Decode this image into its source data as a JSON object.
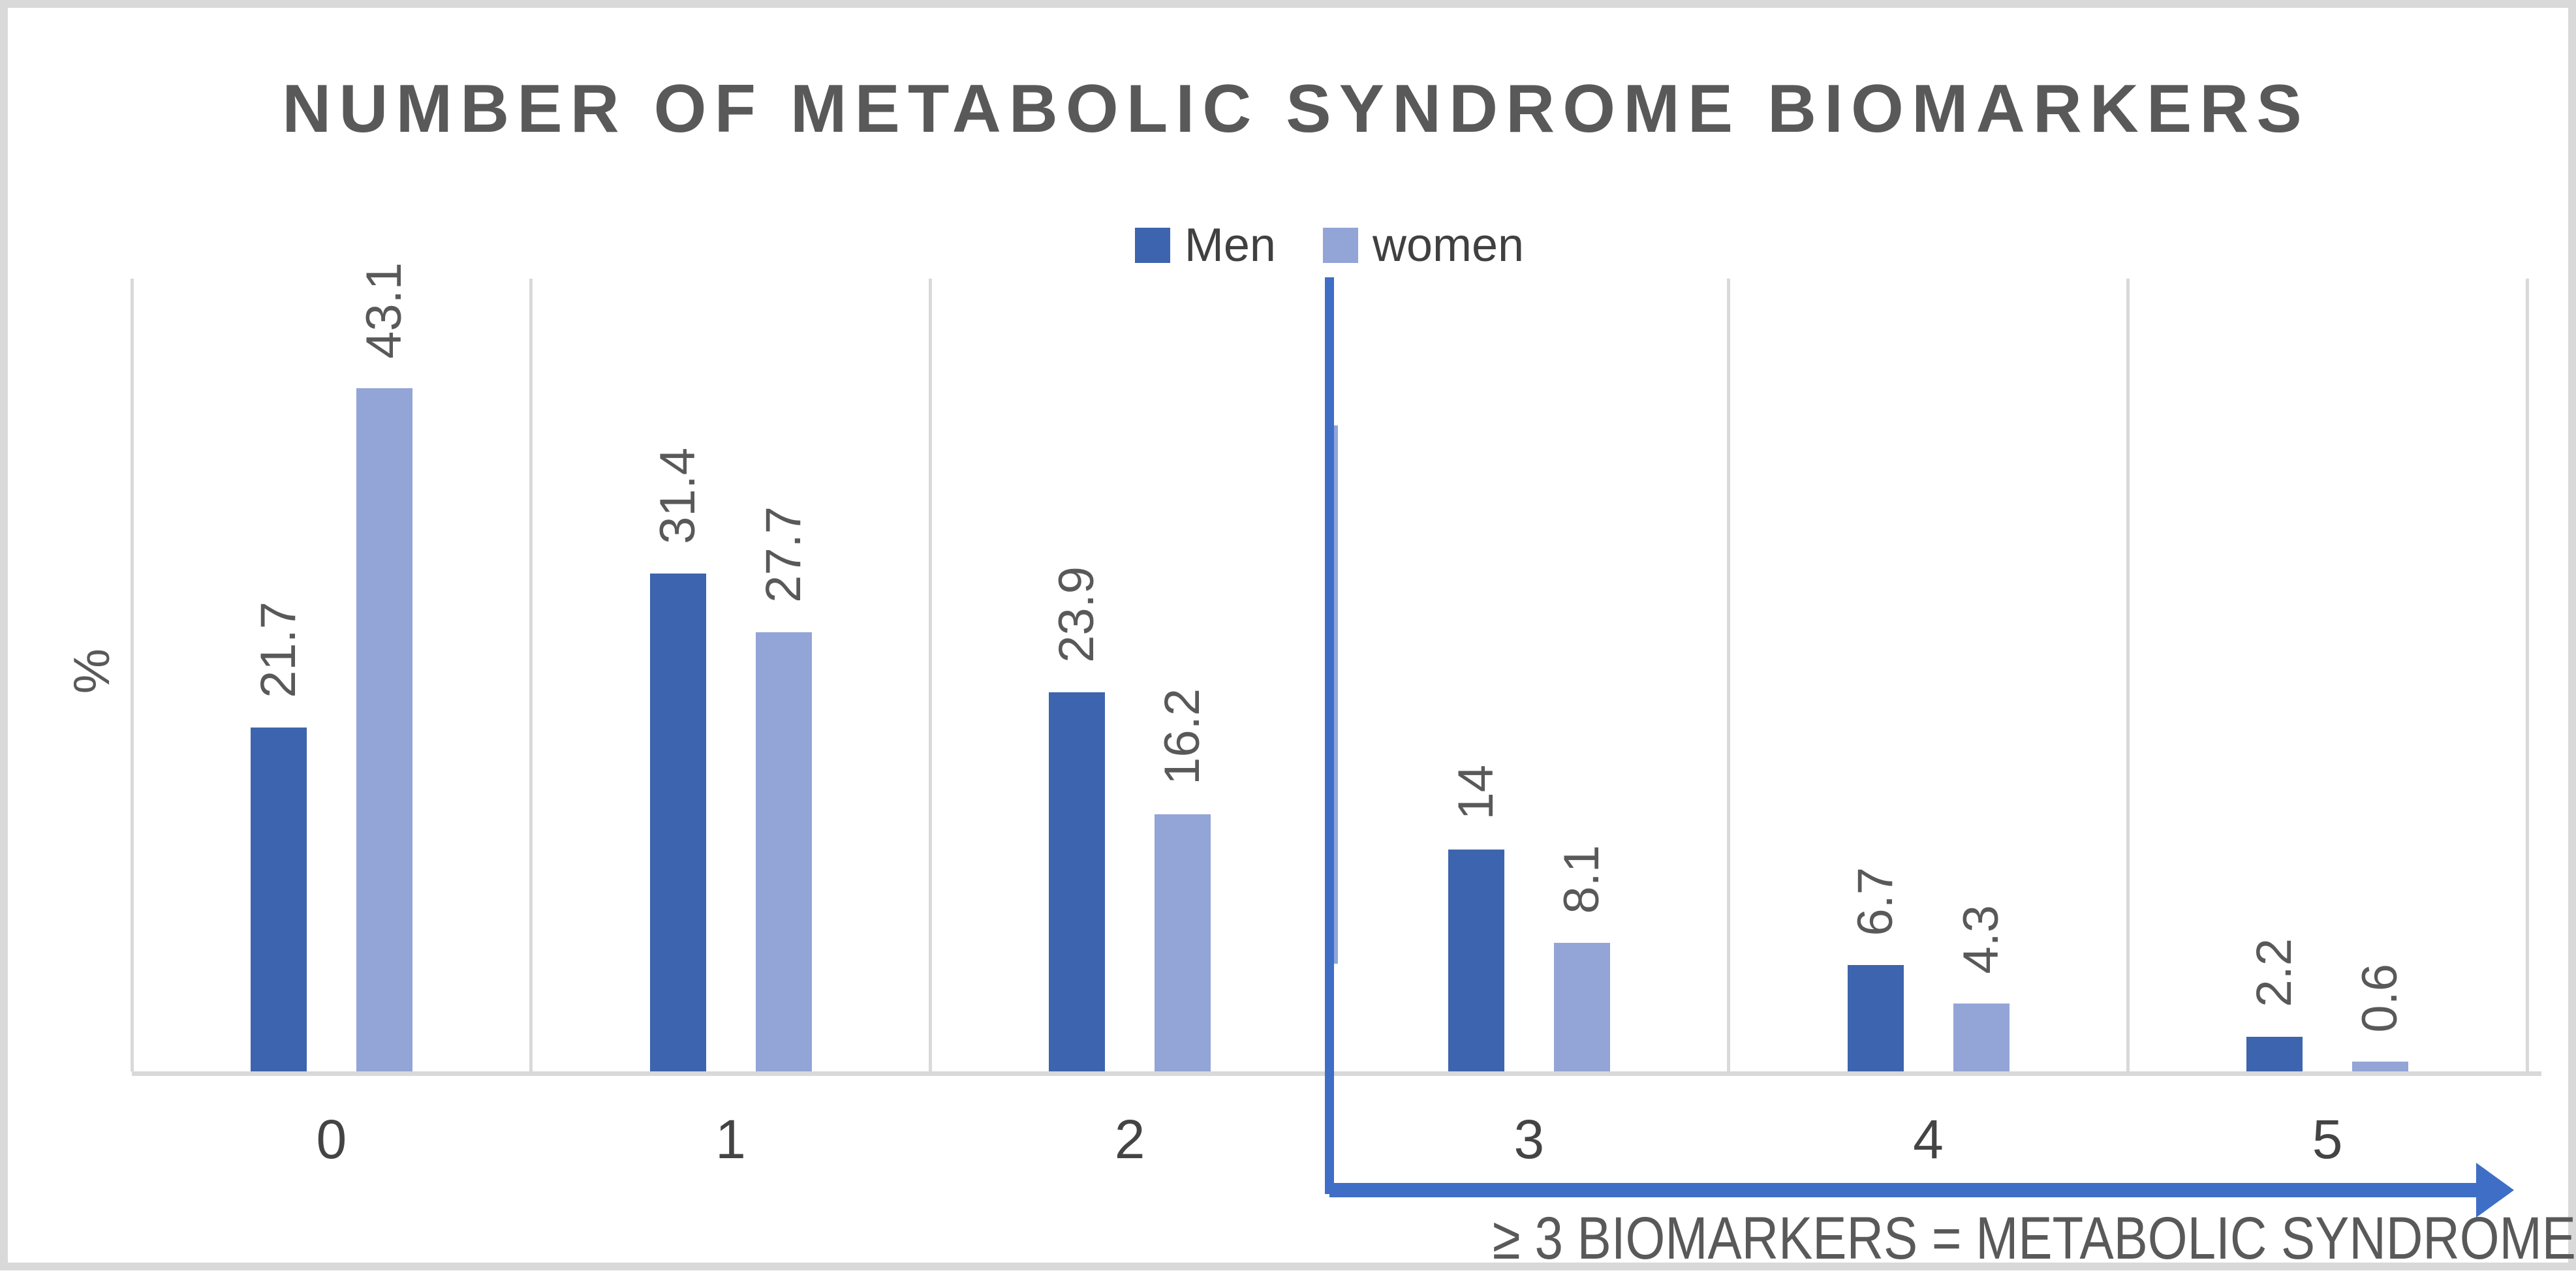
{
  "title": "NUMBER OF METABOLIC SYNDROME BIOMARKERS",
  "legend": {
    "items": [
      {
        "label": "Men",
        "color": "#3d64ae"
      },
      {
        "label": "women",
        "color": "#93a4d6"
      }
    ],
    "position": "top-center"
  },
  "y_axis_label": "%",
  "annotation": {
    "text": "≥ 3 BIOMARKERS = METABOLIC SYNDROME",
    "shape": "vertical divider line after category 2 plus right-pointing arrow under axis",
    "color": "#3e6ec6"
  },
  "colors": {
    "men_bar": "#3d64ae",
    "women_bar": "#93a4d6",
    "accent_blue": "#3e6ec6",
    "gridline": "#d9d9d9",
    "frame_border": "#d9d9d9",
    "title_text": "#595959",
    "label_text": "#595959",
    "tick_text": "#444444",
    "legend_text": "#404040",
    "background": "#ffffff"
  },
  "chart_data": {
    "type": "bar",
    "title": "NUMBER OF METABOLIC SYNDROME BIOMARKERS",
    "categories": [
      "0",
      "1",
      "2",
      "3",
      "4",
      "5"
    ],
    "series": [
      {
        "name": "Men",
        "color": "#3d64ae",
        "values": [
          21.7,
          31.4,
          23.9,
          14,
          6.7,
          2.2
        ]
      },
      {
        "name": "women",
        "color": "#93a4d6",
        "values": [
          43.1,
          27.7,
          16.2,
          8.1,
          4.3,
          0.6
        ]
      }
    ],
    "xlabel": "",
    "ylabel": "%",
    "ylim": [
      0,
      50
    ],
    "grid": "vertical-category-boundaries-only",
    "legend_position": "top-center",
    "data_labels": "rotated-90-above-bars",
    "annotation_text": "≥ 3 BIOMARKERS = METABOLIC SYNDROME",
    "annotation_meaning": "categories 3-5 (>= 3 biomarkers) indicate metabolic syndrome"
  }
}
